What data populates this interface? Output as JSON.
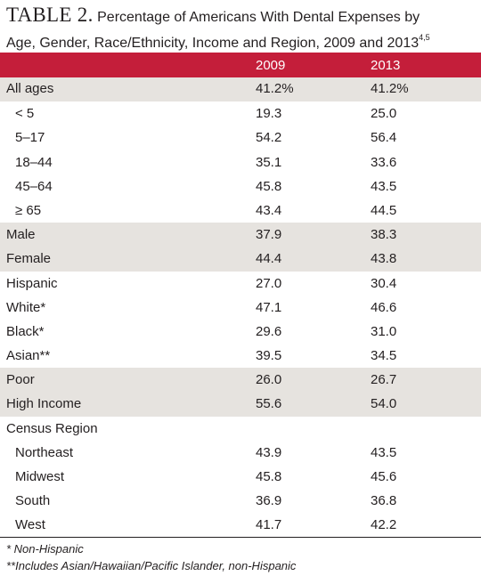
{
  "title": {
    "label": "TABLE 2.",
    "text_line1": "Percentage of Americans With Dental Expenses by",
    "text_line2": "Age, Gender, Race/Ethnicity, Income and Region, 2009 and 2013",
    "refs": "4,5"
  },
  "columns": [
    "2009",
    "2013"
  ],
  "rows": [
    {
      "label": "All ages",
      "v2009": "41.2%",
      "v2013": "41.2%",
      "indent": 0,
      "shaded": true
    },
    {
      "label": "< 5",
      "v2009": "19.3",
      "v2013": "25.0",
      "indent": 1,
      "shaded": false
    },
    {
      "label": "5–17",
      "v2009": "54.2",
      "v2013": "56.4",
      "indent": 1,
      "shaded": false
    },
    {
      "label": "18–44",
      "v2009": "35.1",
      "v2013": "33.6",
      "indent": 1,
      "shaded": false
    },
    {
      "label": "45–64",
      "v2009": "45.8",
      "v2013": "43.5",
      "indent": 1,
      "shaded": false
    },
    {
      "label": "≥ 65",
      "v2009": "43.4",
      "v2013": "44.5",
      "indent": 1,
      "shaded": false
    },
    {
      "label": "Male",
      "v2009": "37.9",
      "v2013": "38.3",
      "indent": 0,
      "shaded": true
    },
    {
      "label": "Female",
      "v2009": "44.4",
      "v2013": "43.8",
      "indent": 0,
      "shaded": true
    },
    {
      "label": "Hispanic",
      "v2009": "27.0",
      "v2013": "30.4",
      "indent": 0,
      "shaded": false
    },
    {
      "label": "White*",
      "v2009": "47.1",
      "v2013": "46.6",
      "indent": 0,
      "shaded": false
    },
    {
      "label": "Black*",
      "v2009": "29.6",
      "v2013": "31.0",
      "indent": 0,
      "shaded": false
    },
    {
      "label": "Asian**",
      "v2009": "39.5",
      "v2013": "34.5",
      "indent": 0,
      "shaded": false
    },
    {
      "label": "Poor",
      "v2009": "26.0",
      "v2013": "26.7",
      "indent": 0,
      "shaded": true
    },
    {
      "label": "High Income",
      "v2009": "55.6",
      "v2013": "54.0",
      "indent": 0,
      "shaded": true
    },
    {
      "label": "Census Region",
      "v2009": "",
      "v2013": "",
      "indent": 0,
      "shaded": false
    },
    {
      "label": "Northeast",
      "v2009": "43.9",
      "v2013": "43.5",
      "indent": 1,
      "shaded": false
    },
    {
      "label": "Midwest",
      "v2009": "45.8",
      "v2013": "45.6",
      "indent": 1,
      "shaded": false
    },
    {
      "label": "South",
      "v2009": "36.9",
      "v2013": "36.8",
      "indent": 1,
      "shaded": false
    },
    {
      "label": "West",
      "v2009": "41.7",
      "v2013": "42.2",
      "indent": 1,
      "shaded": false
    }
  ],
  "footnotes": [
    "* Non-Hispanic",
    "**Includes Asian/Hawaiian/Pacific Islander, non-Hispanic"
  ],
  "colors": {
    "header_bg": "#c41e3a",
    "shade": "#e6e3df"
  }
}
